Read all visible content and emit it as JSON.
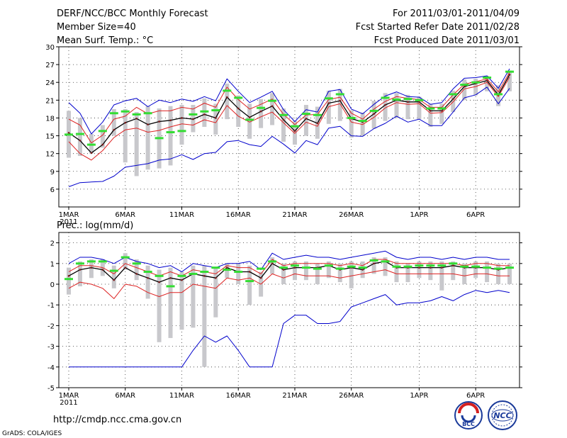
{
  "header": {
    "title_lines": [
      "DERF/NCC/BCC Monthly Forecast",
      "Member Size=40",
      "Mean Surf. Temp.: °C"
    ],
    "info_lines": [
      "For 2011/03/01-2011/04/09",
      "Fcst Started Refer Date 2011/02/28",
      "Fcst Produced Date 2011/03/01"
    ]
  },
  "footer": {
    "url": "http://cmdp.ncc.cma.gov.cn",
    "credit": "GrADS: COLA/IGES",
    "logo_bcc": "BCC",
    "logo_ncc": "NCC"
  },
  "colors": {
    "envelope": "#0000cc",
    "spread": "#dd2222",
    "mean": "#000000",
    "obs": "#33dd33",
    "bar": "#c8c8cc"
  },
  "chart_data": [
    {
      "type": "line",
      "title": "Mean Surf. Temp.: °C",
      "x_tick_labels": [
        "1MAR",
        "6MAR",
        "11MAR",
        "16MAR",
        "21MAR",
        "26MAR",
        "1APR",
        "6APR"
      ],
      "x_tick_days": [
        1,
        6,
        11,
        16,
        21,
        26,
        32,
        37
      ],
      "x_year_label": "2011",
      "ylim": [
        3,
        30
      ],
      "yticks": [
        6,
        9,
        12,
        15,
        18,
        21,
        24,
        27,
        30
      ],
      "ytick_labels": [
        "6",
        "9",
        "12",
        "15",
        "18",
        "21",
        "24",
        "27",
        "30"
      ],
      "grid": true,
      "days": [
        1,
        2,
        3,
        4,
        5,
        6,
        7,
        8,
        9,
        10,
        11,
        12,
        13,
        14,
        15,
        16,
        17,
        18,
        19,
        20,
        21,
        22,
        23,
        24,
        25,
        26,
        27,
        28,
        29,
        30,
        31,
        32,
        33,
        34,
        35,
        36,
        37,
        38,
        39,
        40
      ],
      "series": [
        {
          "role": "max",
          "values": [
            20.6,
            18.8,
            15.3,
            17.3,
            20.2,
            20.9,
            21.3,
            19.9,
            21.0,
            20.6,
            21.2,
            20.8,
            21.6,
            20.9,
            24.6,
            22.5,
            20.6,
            21.5,
            22.5,
            19.4,
            17.4,
            19.4,
            19.0,
            22.5,
            22.8,
            19.5,
            18.7,
            20.3,
            21.7,
            22.4,
            21.6,
            21.5,
            20.3,
            20.6,
            22.9,
            24.7,
            24.8,
            25.1,
            23.0,
            26.3
          ]
        },
        {
          "role": "upper",
          "values": [
            17.8,
            16.8,
            13.8,
            15.1,
            17.8,
            18.3,
            19.8,
            18.7,
            19.2,
            19.2,
            19.8,
            19.5,
            20.5,
            19.8,
            23.2,
            21.1,
            19.5,
            20.3,
            21.2,
            18.6,
            16.9,
            18.5,
            18.6,
            21.1,
            21.5,
            18.8,
            17.8,
            19.5,
            20.8,
            21.6,
            21.3,
            21.1,
            19.8,
            19.8,
            21.9,
            23.7,
            24.1,
            24.6,
            22.4,
            25.7
          ]
        },
        {
          "role": "mean",
          "values": [
            15.5,
            14.2,
            12.1,
            13.5,
            16.0,
            17.2,
            17.9,
            16.9,
            17.4,
            17.6,
            18.0,
            17.8,
            18.6,
            18.0,
            21.5,
            19.6,
            18.1,
            19.1,
            20.0,
            17.7,
            15.8,
            17.9,
            17.1,
            20.5,
            20.9,
            17.9,
            17.3,
            18.7,
            20.2,
            21.0,
            20.7,
            20.7,
            19.2,
            19.2,
            21.2,
            23.3,
            23.8,
            24.3,
            21.9,
            25.3
          ]
        },
        {
          "role": "lower",
          "values": [
            14.0,
            12.0,
            10.9,
            12.5,
            14.7,
            16.0,
            16.3,
            15.6,
            15.9,
            16.5,
            17.0,
            16.8,
            17.7,
            17.2,
            20.1,
            18.3,
            17.3,
            18.2,
            19.0,
            17.2,
            15.4,
            17.3,
            16.6,
            19.9,
            20.4,
            17.3,
            16.9,
            18.1,
            19.7,
            20.6,
            20.3,
            20.4,
            18.8,
            18.9,
            20.7,
            22.9,
            23.3,
            24.0,
            21.6,
            24.9
          ]
        },
        {
          "role": "min",
          "values": [
            6.4,
            7.1,
            7.2,
            7.3,
            8.2,
            9.7,
            10.0,
            10.3,
            10.9,
            11.1,
            11.8,
            11.0,
            12.0,
            12.2,
            14.0,
            14.2,
            13.5,
            13.2,
            14.9,
            13.6,
            12.1,
            14.2,
            13.5,
            16.3,
            16.6,
            15.0,
            14.9,
            16.2,
            17.1,
            18.3,
            17.3,
            17.8,
            16.7,
            16.7,
            19.0,
            21.4,
            21.9,
            23.2,
            20.4,
            23.0
          ]
        },
        {
          "role": "observed",
          "values": [
            15.2,
            15.3,
            13.5,
            15.8,
            18.8,
            19.1,
            18.6,
            18.8,
            14.6,
            15.6,
            15.8,
            18.6,
            19.1,
            19.3,
            22.6,
            21.4,
            17.7,
            19.7,
            20.9,
            18.5,
            16.6,
            18.7,
            18.5,
            21.3,
            22.0,
            18.0,
            17.5,
            19.2,
            21.4,
            21.1,
            21.2,
            21.0,
            19.6,
            19.6,
            22.0,
            23.6,
            24.0,
            24.8,
            22.0,
            25.8
          ]
        },
        {
          "role": "range",
          "lows": [
            11.3,
            11.6,
            12.0,
            13.0,
            15.0,
            10.5,
            8.2,
            9.3,
            9.5,
            10.0,
            13.5,
            15.6,
            16.5,
            15.2,
            17.8,
            16.5,
            14.5,
            16.3,
            16.8,
            14.0,
            13.5,
            15.0,
            14.5,
            17.0,
            17.5,
            14.7,
            15.0,
            16.2,
            17.5,
            18.0,
            17.8,
            17.8,
            16.5,
            17.0,
            19.0,
            21.0,
            21.8,
            22.5,
            20.0,
            22.5
          ],
          "highs": [
            19.2,
            18.0,
            15.3,
            16.8,
            19.5,
            19.5,
            19.0,
            20.0,
            19.6,
            20.0,
            20.2,
            20.2,
            21.3,
            20.4,
            23.8,
            21.8,
            20.4,
            21.2,
            22.2,
            19.6,
            17.5,
            20.2,
            19.9,
            22.6,
            22.9,
            19.3,
            18.9,
            20.9,
            22.2,
            22.2,
            21.9,
            21.6,
            20.4,
            20.4,
            22.6,
            24.5,
            24.6,
            25.1,
            23.5,
            26.0
          ]
        }
      ]
    },
    {
      "type": "line",
      "title": "Prec.: log(mm/d)",
      "x_tick_labels": [
        "1MAR",
        "6MAR",
        "11MAR",
        "16MAR",
        "21MAR",
        "26MAR",
        "1APR",
        "6APR"
      ],
      "x_tick_days": [
        1,
        6,
        11,
        16,
        21,
        26,
        32,
        37
      ],
      "x_year_label": "2011",
      "ylim": [
        -5,
        2.5
      ],
      "yticks": [
        -5,
        -4,
        -3,
        -2,
        -1,
        0,
        1,
        2
      ],
      "ytick_labels": [
        "-5",
        "-4",
        "-3",
        "-2",
        "-1",
        "0",
        "1",
        "2"
      ],
      "grid": true,
      "days": [
        1,
        2,
        3,
        4,
        5,
        6,
        7,
        8,
        9,
        10,
        11,
        12,
        13,
        14,
        15,
        16,
        17,
        18,
        19,
        20,
        21,
        22,
        23,
        24,
        25,
        26,
        27,
        28,
        29,
        30,
        31,
        32,
        33,
        34,
        35,
        36,
        37,
        38,
        39,
        40
      ],
      "series": [
        {
          "role": "max",
          "values": [
            1.0,
            1.3,
            1.3,
            1.2,
            1.0,
            1.3,
            1.1,
            1.0,
            0.8,
            0.9,
            0.6,
            1.0,
            0.9,
            0.8,
            1.0,
            1.0,
            1.1,
            0.7,
            1.5,
            1.2,
            1.3,
            1.4,
            1.3,
            1.3,
            1.2,
            1.3,
            1.4,
            1.5,
            1.6,
            1.3,
            1.2,
            1.3,
            1.3,
            1.2,
            1.3,
            1.2,
            1.3,
            1.3,
            1.2,
            1.2
          ]
        },
        {
          "role": "upper",
          "values": [
            0.6,
            0.9,
            0.9,
            0.8,
            0.5,
            1.0,
            0.8,
            0.6,
            0.4,
            0.6,
            0.4,
            0.7,
            0.6,
            0.5,
            0.9,
            0.8,
            0.8,
            0.5,
            1.2,
            0.9,
            1.0,
            1.0,
            1.0,
            1.0,
            0.9,
            1.0,
            0.9,
            1.2,
            1.2,
            1.0,
            1.0,
            1.0,
            1.0,
            1.0,
            1.0,
            0.9,
            1.0,
            1.0,
            0.9,
            0.9
          ]
        },
        {
          "role": "mean",
          "values": [
            0.4,
            0.7,
            0.8,
            0.7,
            0.2,
            0.8,
            0.5,
            0.3,
            0.1,
            0.3,
            0.2,
            0.5,
            0.4,
            0.3,
            0.8,
            0.6,
            0.6,
            0.3,
            1.0,
            0.7,
            0.8,
            0.8,
            0.8,
            0.9,
            0.7,
            0.8,
            0.7,
            1.0,
            1.1,
            0.8,
            0.8,
            0.8,
            0.8,
            0.8,
            0.9,
            0.8,
            0.8,
            0.8,
            0.7,
            0.8
          ]
        },
        {
          "role": "lower",
          "values": [
            -0.2,
            0.1,
            0.0,
            -0.2,
            -0.7,
            0.0,
            -0.1,
            -0.4,
            -0.6,
            -0.4,
            -0.4,
            0.0,
            -0.1,
            -0.2,
            0.3,
            0.2,
            0.3,
            0.0,
            0.5,
            0.3,
            0.5,
            0.4,
            0.4,
            0.4,
            0.3,
            0.4,
            0.5,
            0.6,
            0.7,
            0.5,
            0.5,
            0.5,
            0.5,
            0.5,
            0.5,
            0.4,
            0.5,
            0.5,
            0.4,
            0.4
          ]
        },
        {
          "role": "min",
          "values": [
            -4.0,
            -4.0,
            -4.0,
            -4.0,
            -4.0,
            -4.0,
            -4.0,
            -4.0,
            -4.0,
            -4.0,
            -4.0,
            -3.2,
            -2.5,
            -2.8,
            -2.5,
            -3.2,
            -4.0,
            -4.0,
            -4.0,
            -1.9,
            -1.5,
            -1.5,
            -1.9,
            -1.9,
            -1.8,
            -1.1,
            -0.9,
            -0.7,
            -0.5,
            -1.0,
            -0.9,
            -0.9,
            -0.8,
            -0.6,
            -0.8,
            -0.5,
            -0.3,
            -0.4,
            -0.3,
            -0.4
          ]
        },
        {
          "role": "observed",
          "values": [
            0.25,
            1.0,
            1.1,
            1.1,
            0.65,
            1.3,
            1.0,
            0.6,
            0.4,
            -0.1,
            0.4,
            0.5,
            0.6,
            0.8,
            0.7,
            0.6,
            0.15,
            0.75,
            1.1,
            0.8,
            0.9,
            0.8,
            0.75,
            0.9,
            0.75,
            0.85,
            0.8,
            1.15,
            1.1,
            0.85,
            0.85,
            0.9,
            0.9,
            0.9,
            1.0,
            0.85,
            0.85,
            0.8,
            0.75,
            0.8
          ]
        },
        {
          "role": "range",
          "lows": [
            -0.5,
            -0.1,
            0.3,
            0.4,
            -0.2,
            0.7,
            0.2,
            -0.7,
            -2.8,
            -2.6,
            -2.2,
            -2.1,
            -4.0,
            -1.6,
            0.3,
            0.0,
            -1.0,
            -0.6,
            0.5,
            0.0,
            0.2,
            0.2,
            0.0,
            0.3,
            0.1,
            -0.2,
            0.3,
            0.5,
            0.4,
            0.1,
            0.1,
            0.3,
            0.2,
            -0.3,
            0.2,
            0.0,
            0.3,
            0.1,
            0.0,
            0.0
          ]
        },
        {
          "role": "range_high",
          "highs": [
            0.8,
            1.1,
            1.2,
            1.2,
            0.9,
            1.5,
            1.2,
            0.9,
            0.7,
            0.8,
            0.6,
            0.9,
            0.9,
            0.8,
            1.0,
            1.0,
            0.9,
            0.6,
            1.3,
            1.0,
            1.1,
            1.1,
            1.0,
            1.1,
            1.0,
            1.1,
            1.1,
            1.3,
            1.3,
            1.1,
            1.0,
            1.1,
            1.1,
            1.1,
            1.1,
            1.0,
            1.1,
            1.1,
            1.0,
            1.0
          ]
        }
      ]
    }
  ]
}
